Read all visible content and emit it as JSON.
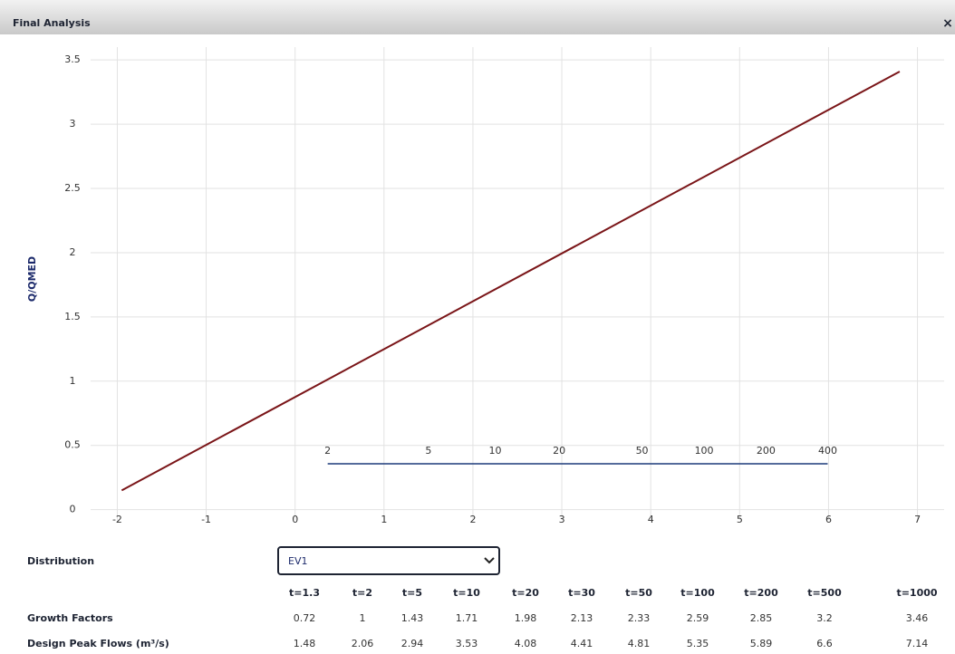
{
  "window": {
    "title": "Final Analysis",
    "close": "×"
  },
  "chart_data": {
    "type": "line",
    "ylabel": "Q/QMED",
    "x": [
      -1.95,
      6.8
    ],
    "series": [
      {
        "color": "#7a1518",
        "values": [
          0.15,
          3.41
        ]
      }
    ],
    "xlim": [
      -2.3,
      7.3
    ],
    "xticks": [
      -2,
      -1,
      0,
      1,
      2,
      3,
      4,
      5,
      6,
      7
    ],
    "ylim": [
      -0.08,
      3.6
    ],
    "yticks": [
      0,
      0.5,
      1,
      1.5,
      2,
      2.5,
      3,
      3.5
    ],
    "grid": true,
    "return_periods": [
      2,
      5,
      10,
      20,
      50,
      100,
      200,
      400
    ]
  },
  "distribution": {
    "label": "Distribution",
    "selected": "EV1"
  },
  "table": {
    "header": [
      "t=1.3",
      "t=2",
      "t=5",
      "t=10",
      "t=20",
      "t=30",
      "t=50",
      "t=100",
      "t=200",
      "t=500",
      "t=1000"
    ],
    "rows": [
      {
        "label": "Growth Factors",
        "values": [
          0.72,
          1,
          1.43,
          1.71,
          1.98,
          2.13,
          2.33,
          2.59,
          2.85,
          3.2,
          3.46
        ]
      },
      {
        "label": "Design Peak Flows (m³/s)",
        "values": [
          1.48,
          2.06,
          2.94,
          3.53,
          4.08,
          4.41,
          4.81,
          5.35,
          5.89,
          6.6,
          7.14
        ]
      }
    ]
  }
}
